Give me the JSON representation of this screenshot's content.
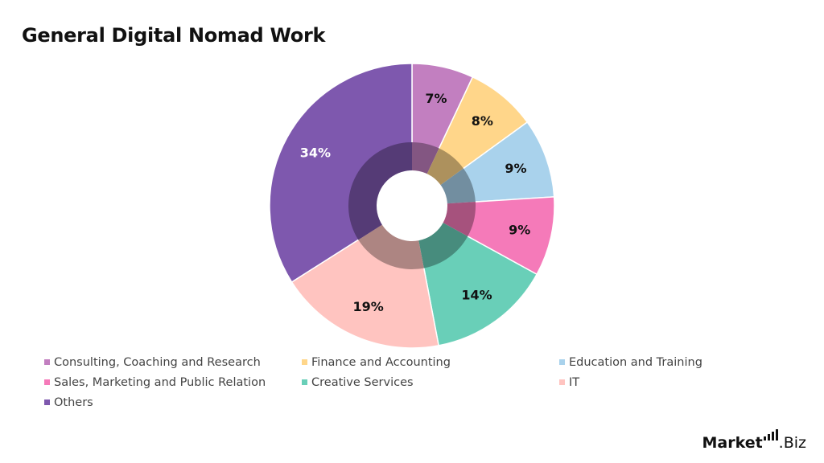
{
  "title": "General Digital Nomad Work",
  "brand": {
    "main": "Market",
    "suffix": ".Biz"
  },
  "chart_data": {
    "type": "pie",
    "variant": "donut",
    "title": "General Digital Nomad Work",
    "legend_position": "bottom",
    "categories": [
      "Consulting, Coaching and Research",
      "Finance and Accounting",
      "Education and Training",
      "Sales, Marketing and Public Relation",
      "Creative Services",
      "IT",
      "Others"
    ],
    "values": [
      7,
      8,
      9,
      9,
      14,
      19,
      34
    ],
    "labels": [
      "7%",
      "8%",
      "9%",
      "9%",
      "14%",
      "19%",
      "34%"
    ],
    "colors": [
      "#c27fc0",
      "#ffd68a",
      "#a9d2ec",
      "#f57ab9",
      "#69cfb8",
      "#ffc4c0",
      "#7e58ae"
    ],
    "label_colors": [
      "#111111",
      "#111111",
      "#111111",
      "#111111",
      "#111111",
      "#111111",
      "#ffffff"
    ]
  }
}
